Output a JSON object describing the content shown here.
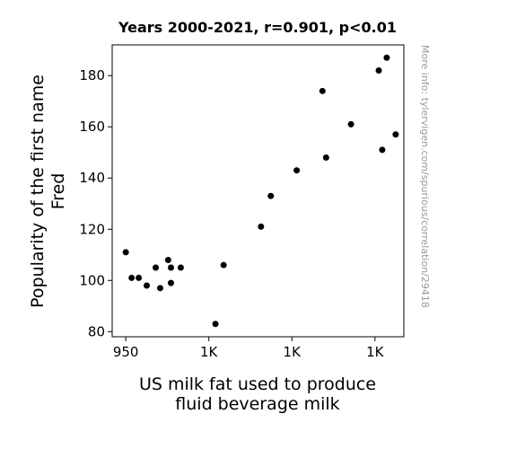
{
  "chart_data": {
    "type": "scatter",
    "title": "Years 2000-2021, r=0.901, p<0.01",
    "xlabel_lines": [
      "US milk fat used to produce",
      "fluid beverage milk"
    ],
    "ylabel_lines": [
      "Popularity of the first name",
      "Fred"
    ],
    "side_note": "More info: tylervigen.com/spurious/correlation/29418",
    "xlim": [
      941.8,
      1117.4
    ],
    "ylim": [
      78,
      192
    ],
    "x_ticks": [
      {
        "value": 950,
        "label": "950"
      },
      {
        "value": 1000,
        "label": "1K"
      },
      {
        "value": 1050,
        "label": "1K"
      },
      {
        "value": 1100,
        "label": "1K"
      }
    ],
    "y_ticks": [
      80,
      100,
      120,
      140,
      160,
      180
    ],
    "grid": false,
    "marker_color": "#000000",
    "points": [
      {
        "x": 950.0,
        "y": 111
      },
      {
        "x": 953.5,
        "y": 101
      },
      {
        "x": 957.8,
        "y": 101
      },
      {
        "x": 962.6,
        "y": 98
      },
      {
        "x": 968.0,
        "y": 105
      },
      {
        "x": 970.7,
        "y": 97
      },
      {
        "x": 975.5,
        "y": 108
      },
      {
        "x": 977.2,
        "y": 105
      },
      {
        "x": 977.2,
        "y": 99
      },
      {
        "x": 983.1,
        "y": 105
      },
      {
        "x": 1004.0,
        "y": 83
      },
      {
        "x": 1008.9,
        "y": 106
      },
      {
        "x": 1031.4,
        "y": 121
      },
      {
        "x": 1037.3,
        "y": 133
      },
      {
        "x": 1052.9,
        "y": 143
      },
      {
        "x": 1068.4,
        "y": 174
      },
      {
        "x": 1070.6,
        "y": 148
      },
      {
        "x": 1085.6,
        "y": 161
      },
      {
        "x": 1102.3,
        "y": 182
      },
      {
        "x": 1104.4,
        "y": 151
      },
      {
        "x": 1107.1,
        "y": 187
      },
      {
        "x": 1112.5,
        "y": 157
      }
    ]
  }
}
